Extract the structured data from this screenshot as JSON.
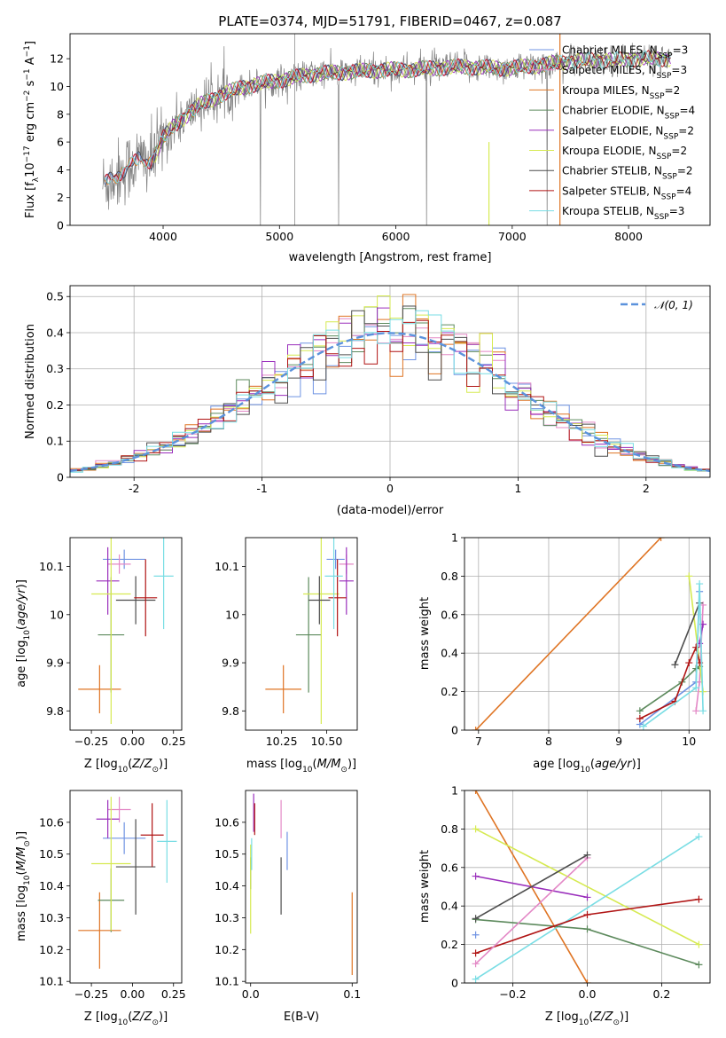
{
  "title": "PLATE=0374, MJD=51791, FIBERID=0467, z=0.087",
  "colors": {
    "Chabrier MILES": "#6f93e3",
    "Salpeter MILES": "#e388c6",
    "Kroupa MILES": "#df7423",
    "Chabrier ELODIE": "#5d8a5d",
    "Salpeter ELODIE": "#9a2fbc",
    "Kroupa ELODIE": "#d6ea52",
    "Chabrier STELIB": "#4d4d4d",
    "Salpeter STELIB": "#b01414",
    "Kroupa STELIB": "#79dde4",
    "data": "#808080",
    "normal": "#5b92dc"
  },
  "chart_data": [
    {
      "type": "line",
      "id": "spectrum",
      "xlabel": "wavelength [Angstrom, rest frame]",
      "ylabel": "Flux [f",
      "xlim": [
        3200,
        8700
      ],
      "ylim": [
        0,
        13.8
      ],
      "xticks": [
        4000,
        5000,
        6000,
        7000,
        8000
      ],
      "yticks": [
        0,
        2,
        4,
        6,
        8,
        10,
        12
      ],
      "continuum_x": [
        3500,
        3600,
        3700,
        3800,
        3900,
        4000,
        4100,
        4200,
        4300,
        4500,
        4700,
        4900,
        5100,
        5300,
        5500,
        5700,
        5900,
        6100,
        6300,
        6500,
        6700,
        6900,
        7100,
        7300,
        7500,
        7700,
        7900,
        8100,
        8300
      ],
      "continuum_y": [
        3.0,
        3.6,
        4.2,
        4.8,
        4.6,
        6.3,
        7.2,
        7.9,
        8.6,
        9.4,
        10.0,
        10.3,
        10.6,
        10.9,
        11.0,
        11.1,
        11.2,
        11.2,
        11.3,
        11.4,
        11.4,
        11.3,
        11.4,
        11.6,
        11.8,
        11.9,
        11.9,
        12.0,
        12.0
      ],
      "legend": [
        {
          "key": "Chabrier MILES",
          "label": "Chabrier MILES, N",
          "n": "3"
        },
        {
          "key": "Salpeter MILES",
          "label": "Salpeter MILES, N",
          "n": "3"
        },
        {
          "key": "Kroupa MILES",
          "label": "Kroupa MILES, N",
          "n": "2"
        },
        {
          "key": "Chabrier ELODIE",
          "label": "Chabrier ELODIE, N",
          "n": "4"
        },
        {
          "key": "Salpeter ELODIE",
          "label": "Salpeter ELODIE, N",
          "n": "2"
        },
        {
          "key": "Kroupa ELODIE",
          "label": "Kroupa ELODIE, N",
          "n": "2"
        },
        {
          "key": "Chabrier STELIB",
          "label": "Chabrier STELIB, N",
          "n": "2"
        },
        {
          "key": "Salpeter STELIB",
          "label": "Salpeter STELIB, N",
          "n": "4"
        },
        {
          "key": "Kroupa STELIB",
          "label": "Kroupa STELIB, N",
          "n": "3"
        }
      ],
      "legend_placement": "upper right"
    },
    {
      "type": "bar",
      "id": "residuals",
      "xlabel": "(data-model)/error",
      "ylabel": "Normed distribution",
      "xlim": [
        -2.5,
        2.5
      ],
      "ylim": [
        0,
        0.53
      ],
      "xticks": [
        -2,
        -1,
        0,
        1,
        2
      ],
      "yticks": [
        0.0,
        0.1,
        0.2,
        0.3,
        0.4,
        0.5
      ],
      "grid": true,
      "legend": "𝒩(0, 1)",
      "legend_placement": "upper right",
      "bin_width": 0.1
    },
    {
      "type": "scatter",
      "id": "age_vs_Z",
      "xlabel": "Z [log",
      "ylabel": "age  [log",
      "xlim": [
        -0.38,
        0.3
      ],
      "ylim": [
        9.76,
        10.16
      ],
      "xticks": [
        -0.25,
        0.0,
        0.25
      ],
      "xtick_labels": [
        "−0.25",
        "0.00",
        "0.25"
      ],
      "yticks": [
        9.8,
        9.9,
        10.0,
        10.1
      ],
      "points": [
        {
          "key": "Chabrier MILES",
          "x": -0.05,
          "xerr": 0.13,
          "y": 10.115,
          "yerr": 0.02
        },
        {
          "key": "Salpeter MILES",
          "x": -0.08,
          "xerr": 0.07,
          "y": 10.105,
          "yerr": 0.02
        },
        {
          "key": "Kroupa MILES",
          "x": -0.2,
          "xerr": 0.13,
          "y": 9.845,
          "yerr": 0.05
        },
        {
          "key": "Chabrier ELODIE",
          "x": -0.13,
          "xerr": 0.08,
          "y": 9.958,
          "yerr": 0.12
        },
        {
          "key": "Salpeter ELODIE",
          "x": -0.15,
          "xerr": 0.07,
          "y": 10.07,
          "yerr": 0.07
        },
        {
          "key": "Kroupa ELODIE",
          "x": -0.13,
          "xerr": 0.12,
          "y": 10.043,
          "yerr": 0.27
        },
        {
          "key": "Chabrier STELIB",
          "x": 0.02,
          "xerr": 0.12,
          "y": 10.03,
          "yerr": 0.05
        },
        {
          "key": "Salpeter STELIB",
          "x": 0.08,
          "xerr": 0.07,
          "y": 10.035,
          "yerr": 0.08
        },
        {
          "key": "Kroupa STELIB",
          "x": 0.19,
          "xerr": 0.06,
          "y": 10.08,
          "yerr": 0.11
        }
      ]
    },
    {
      "type": "scatter",
      "id": "age_vs_mass",
      "xlabel": "mass [log",
      "xlim": [
        10.05,
        10.67
      ],
      "ylim": [
        9.76,
        10.16
      ],
      "xticks": [
        10.25,
        10.5
      ],
      "xtick_labels": [
        "10.25",
        "10.50"
      ],
      "yticks": [
        9.8,
        9.9,
        10.0,
        10.1
      ],
      "points": [
        {
          "key": "Chabrier MILES",
          "x": 10.55,
          "xerr": 0.05,
          "y": 10.115,
          "yerr": 0.02
        },
        {
          "key": "Salpeter MILES",
          "x": 10.61,
          "xerr": 0.04,
          "y": 10.105,
          "yerr": 0.02
        },
        {
          "key": "Kroupa MILES",
          "x": 10.26,
          "xerr": 0.1,
          "y": 9.845,
          "yerr": 0.05
        },
        {
          "key": "Chabrier ELODIE",
          "x": 10.4,
          "xerr": 0.07,
          "y": 9.958,
          "yerr": 0.12
        },
        {
          "key": "Salpeter ELODIE",
          "x": 10.61,
          "xerr": 0.04,
          "y": 10.07,
          "yerr": 0.07
        },
        {
          "key": "Kroupa ELODIE",
          "x": 10.47,
          "xerr": 0.1,
          "y": 10.043,
          "yerr": 0.27
        },
        {
          "key": "Chabrier STELIB",
          "x": 10.46,
          "xerr": 0.06,
          "y": 10.03,
          "yerr": 0.05
        },
        {
          "key": "Salpeter STELIB",
          "x": 10.56,
          "xerr": 0.05,
          "y": 10.035,
          "yerr": 0.08
        },
        {
          "key": "Kroupa STELIB",
          "x": 10.54,
          "xerr": 0.05,
          "y": 10.08,
          "yerr": 0.11
        }
      ]
    },
    {
      "type": "line",
      "id": "weight_vs_age",
      "xlabel": "age  [log",
      "ylabel": "mass weight",
      "xlim": [
        6.8,
        10.3
      ],
      "ylim": [
        0,
        1.0
      ],
      "xticks": [
        7,
        8,
        9,
        10
      ],
      "yticks": [
        0.0,
        0.2,
        0.4,
        0.6,
        0.8,
        1.0
      ],
      "grid": true,
      "series": [
        {
          "key": "Kroupa MILES",
          "x": [
            6.96,
            9.6
          ],
          "y": [
            0.0,
            1.0
          ]
        },
        {
          "key": "Chabrier MILES",
          "x": [
            9.3,
            10.1,
            10.15
          ],
          "y": [
            0.03,
            0.25,
            0.72
          ]
        },
        {
          "key": "Salpeter MILES",
          "x": [
            10.1,
            10.15,
            10.2
          ],
          "y": [
            0.1,
            0.25,
            0.65
          ]
        },
        {
          "key": "Chabrier ELODIE",
          "x": [
            9.3,
            9.9,
            10.1,
            10.15
          ],
          "y": [
            0.1,
            0.25,
            0.32,
            0.33
          ]
        },
        {
          "key": "Salpeter ELODIE",
          "x": [
            10.15,
            10.2
          ],
          "y": [
            0.45,
            0.55
          ]
        },
        {
          "key": "Kroupa ELODIE",
          "x": [
            10.0,
            10.2
          ],
          "y": [
            0.8,
            0.2
          ]
        },
        {
          "key": "Chabrier STELIB",
          "x": [
            9.8,
            10.15
          ],
          "y": [
            0.34,
            0.66
          ]
        },
        {
          "key": "Salpeter STELIB",
          "x": [
            9.3,
            9.8,
            10.0,
            10.1,
            10.15
          ],
          "y": [
            0.06,
            0.15,
            0.35,
            0.43,
            0.35
          ]
        },
        {
          "key": "Kroupa STELIB",
          "x": [
            9.35,
            10.1,
            10.15,
            10.2
          ],
          "y": [
            0.02,
            0.22,
            0.76,
            0.1
          ]
        }
      ]
    },
    {
      "type": "scatter",
      "id": "mass_vs_Z",
      "xlabel": "Z [log",
      "ylabel": "mass [log",
      "xlim": [
        -0.38,
        0.3
      ],
      "ylim": [
        10.095,
        10.7
      ],
      "xticks": [
        -0.25,
        0.0,
        0.25
      ],
      "xtick_labels": [
        "−0.25",
        "0.00",
        "0.25"
      ],
      "yticks": [
        10.1,
        10.2,
        10.3,
        10.4,
        10.5,
        10.6
      ],
      "points": [
        {
          "key": "Chabrier MILES",
          "x": -0.05,
          "xerr": 0.13,
          "y": 10.55,
          "yerr": 0.05
        },
        {
          "key": "Salpeter MILES",
          "x": -0.08,
          "xerr": 0.07,
          "y": 10.64,
          "yerr": 0.04
        },
        {
          "key": "Kroupa MILES",
          "x": -0.2,
          "xerr": 0.13,
          "y": 10.26,
          "yerr": 0.12
        },
        {
          "key": "Chabrier ELODIE",
          "x": -0.13,
          "xerr": 0.08,
          "y": 10.355,
          "yerr": 0.1
        },
        {
          "key": "Salpeter ELODIE",
          "x": -0.15,
          "xerr": 0.07,
          "y": 10.61,
          "yerr": 0.06
        },
        {
          "key": "Kroupa ELODIE",
          "x": -0.13,
          "xerr": 0.12,
          "y": 10.47,
          "yerr": 0.21
        },
        {
          "key": "Chabrier STELIB",
          "x": 0.02,
          "xerr": 0.12,
          "y": 10.46,
          "yerr": 0.15
        },
        {
          "key": "Salpeter STELIB",
          "x": 0.12,
          "xerr": 0.07,
          "y": 10.56,
          "yerr": 0.1
        },
        {
          "key": "Kroupa STELIB",
          "x": 0.21,
          "xerr": 0.06,
          "y": 10.54,
          "yerr": 0.13
        }
      ]
    },
    {
      "type": "scatter",
      "id": "mass_vs_ebv",
      "xlabel": "E(B-V)",
      "xlim": [
        -0.005,
        0.105
      ],
      "ylim": [
        10.095,
        10.7
      ],
      "xticks": [
        0.0,
        0.1
      ],
      "xtick_labels": [
        "0.0",
        "0.1"
      ],
      "yticks": [
        10.1,
        10.2,
        10.3,
        10.4,
        10.5,
        10.6
      ],
      "points": [
        {
          "key": "Chabrier MILES",
          "x": 0.036,
          "y": 10.51,
          "yerr": 0.06
        },
        {
          "key": "Salpeter MILES",
          "x": 0.03,
          "y": 10.61,
          "yerr": 0.06
        },
        {
          "key": "Kroupa MILES",
          "x": 0.1,
          "y": 10.25,
          "yerr": 0.13
        },
        {
          "key": "Chabrier ELODIE",
          "x": 0.0,
          "y": 10.44,
          "yerr": 0.05
        },
        {
          "key": "Salpeter ELODIE",
          "x": 0.003,
          "y": 10.63,
          "yerr": 0.06
        },
        {
          "key": "Kroupa ELODIE",
          "x": 0.0,
          "y": 10.39,
          "yerr": 0.14
        },
        {
          "key": "Chabrier STELIB",
          "x": 0.03,
          "y": 10.4,
          "yerr": 0.09
        },
        {
          "key": "Salpeter STELIB",
          "x": 0.004,
          "y": 10.61,
          "yerr": 0.05
        },
        {
          "key": "Kroupa STELIB",
          "x": 0.001,
          "y": 10.5,
          "yerr": 0.05
        }
      ]
    },
    {
      "type": "line",
      "id": "weight_vs_Z",
      "xlabel": "Z [log",
      "ylabel": "mass weight",
      "xlim": [
        -0.33,
        0.33
      ],
      "ylim": [
        0,
        1.0
      ],
      "xticks": [
        -0.2,
        0.0,
        0.2
      ],
      "xtick_labels": [
        "−0.2",
        "0.0",
        "0.2"
      ],
      "yticks": [
        0.0,
        0.2,
        0.4,
        0.6,
        0.8,
        1.0
      ],
      "grid": true,
      "series": [
        {
          "key": "Kroupa MILES",
          "x": [
            -0.3,
            0.0
          ],
          "y": [
            1.0,
            0.0
          ]
        },
        {
          "key": "Kroupa ELODIE",
          "x": [
            -0.3,
            0.3
          ],
          "y": [
            0.8,
            0.2
          ]
        },
        {
          "key": "Kroupa STELIB",
          "x": [
            -0.3,
            0.3
          ],
          "y": [
            0.02,
            0.76
          ]
        },
        {
          "key": "Salpeter ELODIE",
          "x": [
            -0.3,
            0.0
          ],
          "y": [
            0.555,
            0.445
          ]
        },
        {
          "key": "Chabrier ELODIE",
          "x": [
            -0.3,
            0.0,
            0.3
          ],
          "y": [
            0.33,
            0.28,
            0.095
          ]
        },
        {
          "key": "Salpeter STELIB",
          "x": [
            -0.3,
            0.0,
            0.3
          ],
          "y": [
            0.155,
            0.355,
            0.435
          ]
        },
        {
          "key": "Salpeter MILES",
          "x": [
            -0.3,
            0.0
          ],
          "y": [
            0.1,
            0.65
          ]
        },
        {
          "key": "Chabrier MILES",
          "x": [
            -0.3
          ],
          "y": [
            0.25
          ]
        },
        {
          "key": "Chabrier STELIB",
          "x": [
            -0.3,
            0.0
          ],
          "y": [
            0.335,
            0.665
          ]
        }
      ]
    }
  ]
}
